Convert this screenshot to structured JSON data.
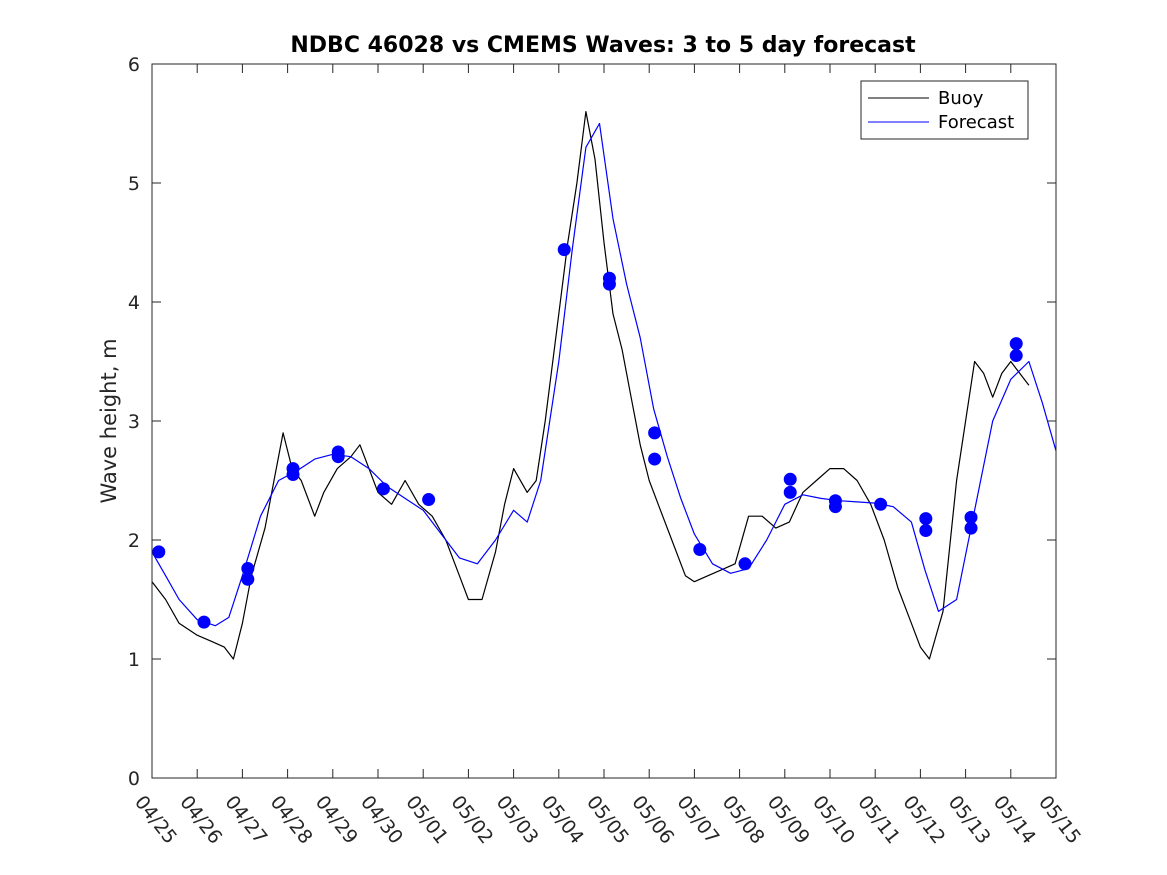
{
  "chart_data": {
    "type": "line",
    "title": "NDBC 46028 vs CMEMS Waves: 3 to 5 day forecast",
    "xlabel": "",
    "ylabel": "Wave height, m",
    "ylim": [
      0,
      6
    ],
    "xlim_days": [
      0,
      20
    ],
    "yticks": [
      0,
      1,
      2,
      3,
      4,
      5,
      6
    ],
    "xtick_labels": [
      "04/25",
      "04/26",
      "04/27",
      "04/28",
      "04/29",
      "04/30",
      "05/01",
      "05/02",
      "05/03",
      "05/04",
      "05/05",
      "05/06",
      "05/07",
      "05/08",
      "05/09",
      "05/10",
      "05/11",
      "05/12",
      "05/13",
      "05/14",
      "05/15"
    ],
    "legend": {
      "position": "top-right",
      "entries": [
        {
          "label": "Buoy",
          "color": "#000000"
        },
        {
          "label": "Forecast",
          "color": "#0000ff"
        }
      ]
    },
    "series": [
      {
        "name": "Buoy",
        "color": "#000000",
        "x": [
          0,
          0.3,
          0.6,
          1.0,
          1.3,
          1.6,
          1.8,
          2.0,
          2.2,
          2.5,
          2.7,
          2.9,
          3.1,
          3.3,
          3.6,
          3.8,
          4.1,
          4.4,
          4.6,
          4.8,
          5.0,
          5.3,
          5.6,
          5.9,
          6.2,
          6.5,
          6.8,
          7.0,
          7.3,
          7.6,
          7.8,
          8.0,
          8.3,
          8.5,
          8.7,
          9.0,
          9.2,
          9.4,
          9.6,
          9.8,
          10.0,
          10.2,
          10.4,
          10.6,
          10.8,
          11.0,
          11.2,
          11.5,
          11.8,
          12.0,
          12.3,
          12.6,
          12.9,
          13.2,
          13.5,
          13.8,
          14.1,
          14.4,
          14.7,
          15.0,
          15.3,
          15.6,
          15.9,
          16.2,
          16.5,
          16.8,
          17.0,
          17.2,
          17.5,
          17.8,
          18.0,
          18.2,
          18.4,
          18.6,
          18.8,
          19.0,
          19.2,
          19.4
        ],
        "values": [
          1.65,
          1.5,
          1.3,
          1.2,
          1.15,
          1.1,
          1.0,
          1.3,
          1.7,
          2.1,
          2.5,
          2.9,
          2.6,
          2.5,
          2.2,
          2.4,
          2.6,
          2.7,
          2.8,
          2.6,
          2.4,
          2.3,
          2.5,
          2.3,
          2.2,
          2.0,
          1.7,
          1.5,
          1.5,
          1.9,
          2.3,
          2.6,
          2.4,
          2.5,
          3.0,
          3.9,
          4.5,
          5.0,
          5.6,
          5.2,
          4.5,
          3.9,
          3.6,
          3.2,
          2.8,
          2.5,
          2.3,
          2.0,
          1.7,
          1.65,
          1.7,
          1.75,
          1.8,
          2.2,
          2.2,
          2.1,
          2.15,
          2.4,
          2.5,
          2.6,
          2.6,
          2.5,
          2.3,
          2.0,
          1.6,
          1.3,
          1.1,
          1.0,
          1.4,
          2.5,
          3.0,
          3.5,
          3.4,
          3.2,
          3.4,
          3.5,
          3.4,
          3.3
        ]
      },
      {
        "name": "Forecast",
        "color": "#0000ff",
        "x": [
          0,
          0.3,
          0.6,
          1.0,
          1.4,
          1.7,
          2.0,
          2.4,
          2.8,
          3.2,
          3.6,
          4.0,
          4.4,
          4.8,
          5.2,
          5.6,
          6.0,
          6.4,
          6.8,
          7.2,
          7.6,
          8.0,
          8.3,
          8.6,
          9.0,
          9.3,
          9.6,
          9.9,
          10.2,
          10.5,
          10.8,
          11.1,
          11.4,
          11.7,
          12.0,
          12.4,
          12.8,
          13.2,
          13.6,
          14.0,
          14.4,
          14.8,
          15.2,
          15.6,
          16.0,
          16.4,
          16.8,
          17.1,
          17.4,
          17.8,
          18.2,
          18.6,
          19.0,
          19.4,
          19.7,
          20.0
        ],
        "values": [
          1.9,
          1.7,
          1.5,
          1.33,
          1.28,
          1.35,
          1.7,
          2.2,
          2.5,
          2.58,
          2.68,
          2.72,
          2.7,
          2.6,
          2.45,
          2.35,
          2.25,
          2.05,
          1.85,
          1.8,
          2.0,
          2.25,
          2.15,
          2.5,
          3.5,
          4.45,
          5.3,
          5.5,
          4.7,
          4.15,
          3.7,
          3.1,
          2.7,
          2.35,
          2.05,
          1.8,
          1.72,
          1.76,
          2.0,
          2.3,
          2.38,
          2.35,
          2.33,
          2.32,
          2.31,
          2.28,
          2.15,
          1.75,
          1.4,
          1.5,
          2.25,
          3.0,
          3.35,
          3.5,
          3.15,
          2.75
        ]
      }
    ],
    "markers": {
      "color": "#0000ff",
      "x": [
        0.15,
        1.15,
        2.12,
        2.12,
        3.12,
        3.12,
        4.12,
        4.12,
        5.12,
        6.12,
        9.12,
        10.12,
        10.12,
        11.12,
        11.12,
        12.12,
        13.12,
        14.12,
        14.12,
        15.12,
        15.12,
        16.12,
        17.12,
        17.12,
        18.12,
        18.12,
        19.12,
        19.12
      ],
      "values": [
        1.9,
        1.31,
        1.76,
        1.67,
        2.6,
        2.55,
        2.74,
        2.7,
        2.43,
        2.34,
        4.44,
        4.2,
        4.15,
        2.9,
        2.68,
        1.92,
        1.8,
        2.51,
        2.4,
        2.33,
        2.28,
        2.3,
        2.18,
        2.08,
        2.19,
        2.1,
        3.65,
        3.55
      ]
    }
  }
}
